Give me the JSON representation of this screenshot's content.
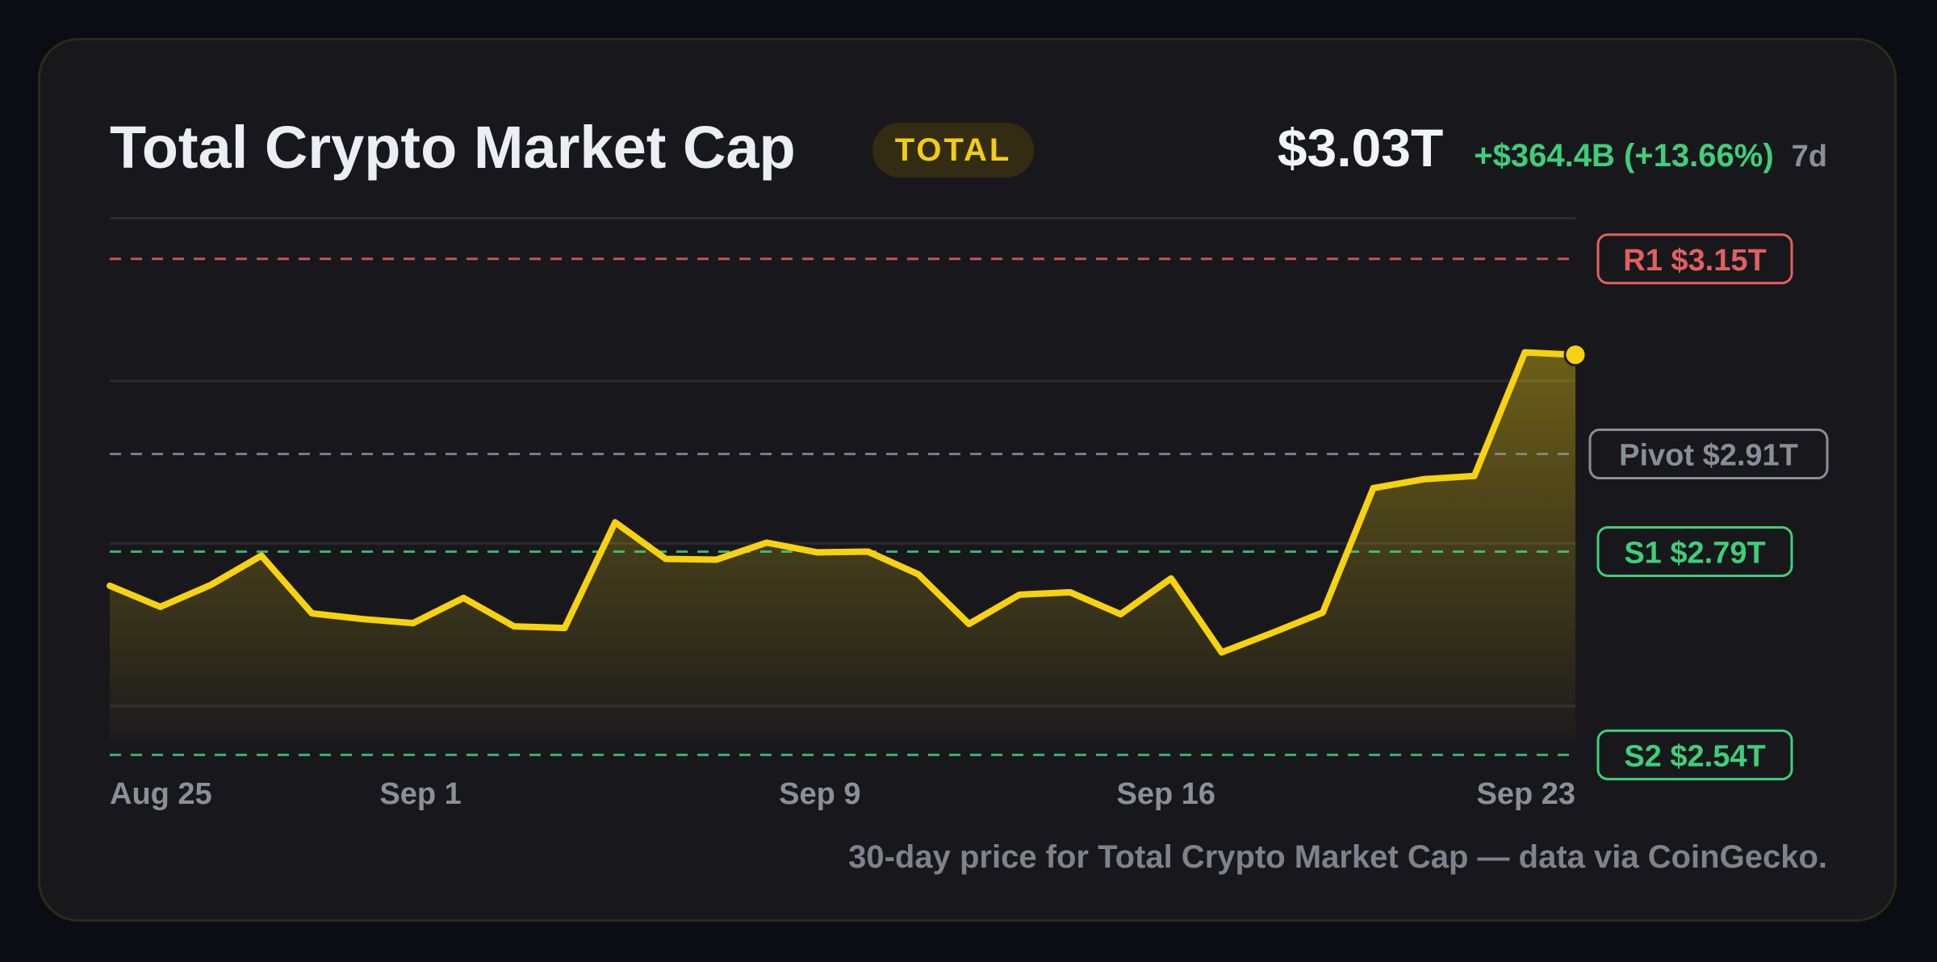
{
  "header": {
    "title": "Total Crypto Market Cap",
    "badge": "TOTAL",
    "price": "$3.03T",
    "change": "+$364.4B (+13.66%)",
    "period": "7d"
  },
  "caption": "30-day price for Total Crypto Market Cap — data via CoinGecko.",
  "colors": {
    "line": "#f7d20f",
    "resistance": "#e35f5f",
    "pivot": "#8b8e96",
    "support": "#3ecf79",
    "positive": "#3ecf79"
  },
  "chart_data": {
    "type": "area",
    "x_tick_labels": [
      "Aug 25",
      "Sep 1",
      "Sep 9",
      "Sep 16",
      "Sep 23"
    ],
    "x_tick_index": [
      0,
      6.15,
      14.05,
      20.9,
      27.9
    ],
    "ylim": [
      2.45,
      3.25
    ],
    "gridlines": [
      2.6,
      2.8,
      3.0,
      3.2
    ],
    "series": [
      {
        "values": [
          2.748,
          2.722,
          2.749,
          2.785,
          2.714,
          2.707,
          2.702,
          2.733,
          2.698,
          2.696,
          2.826,
          2.781,
          2.78,
          2.801,
          2.789,
          2.79,
          2.762,
          2.701,
          2.737,
          2.74,
          2.713,
          2.757,
          2.666,
          2.69,
          2.715,
          2.868,
          2.879,
          2.883,
          3.035,
          3.032
        ]
      }
    ],
    "levels": [
      {
        "label": "R1 $3.15T",
        "value": 3.15,
        "kind": "resistance"
      },
      {
        "label": "Pivot $2.91T",
        "value": 2.91,
        "kind": "pivot"
      },
      {
        "label": "S1 $2.79T",
        "value": 2.79,
        "kind": "support"
      },
      {
        "label": "S2 $2.54T",
        "value": 2.54,
        "kind": "support"
      }
    ]
  }
}
